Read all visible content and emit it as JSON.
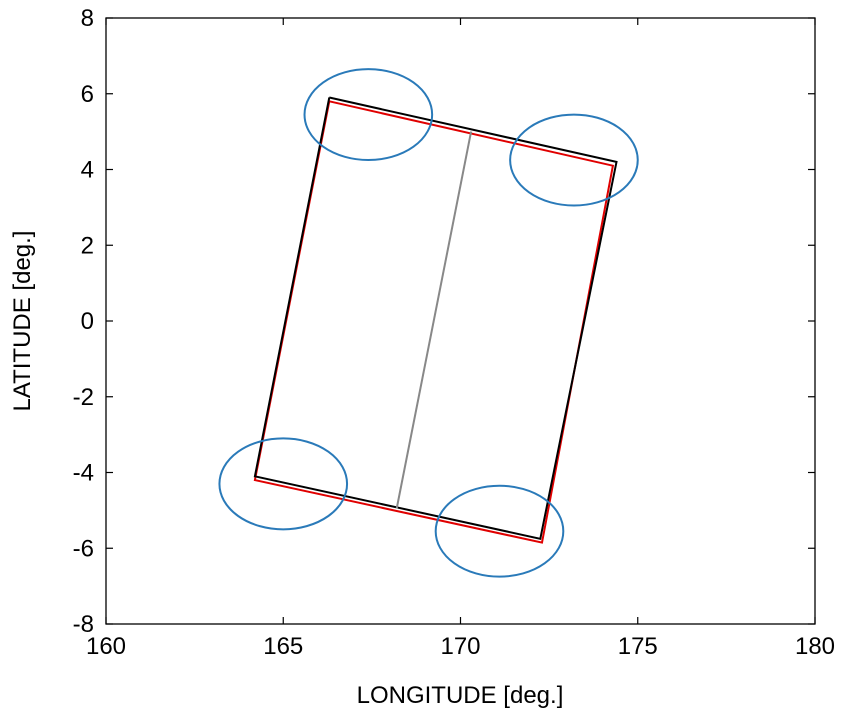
{
  "chart_data": {
    "type": "line",
    "xlabel": "LONGITUDE [deg.]",
    "ylabel": "LATITUDE [deg.]",
    "xlim": [
      160,
      180
    ],
    "ylim": [
      -8,
      8
    ],
    "xticks": [
      160,
      165,
      170,
      175,
      180
    ],
    "yticks": [
      -8,
      -6,
      -4,
      -2,
      0,
      2,
      4,
      6,
      8
    ],
    "grid": false,
    "series": [
      {
        "color": "#e00000",
        "points": [
          [
            166.3,
            5.8
          ],
          [
            174.3,
            4.1
          ],
          [
            172.3,
            -5.85
          ],
          [
            164.2,
            -4.2
          ],
          [
            166.3,
            5.8
          ]
        ]
      },
      {
        "color": "#000000",
        "points": [
          [
            166.3,
            5.9
          ],
          [
            174.4,
            4.2
          ],
          [
            172.25,
            -5.75
          ],
          [
            164.2,
            -4.1
          ],
          [
            166.3,
            5.9
          ]
        ]
      },
      {
        "color": "#888888",
        "points": [
          [
            170.3,
            5.0
          ],
          [
            168.2,
            -4.95
          ]
        ]
      }
    ],
    "annotations": [
      {
        "shape": "ellipse",
        "color": "#2a7ab9",
        "cx": 167.4,
        "cy": 5.45,
        "rx": 1.8,
        "ry": 1.2
      },
      {
        "shape": "ellipse",
        "color": "#2a7ab9",
        "cx": 173.2,
        "cy": 4.25,
        "rx": 1.8,
        "ry": 1.2
      },
      {
        "shape": "ellipse",
        "color": "#2a7ab9",
        "cx": 165.0,
        "cy": -4.3,
        "rx": 1.8,
        "ry": 1.2
      },
      {
        "shape": "ellipse",
        "color": "#2a7ab9",
        "cx": 171.1,
        "cy": -5.55,
        "rx": 1.8,
        "ry": 1.2
      }
    ]
  }
}
